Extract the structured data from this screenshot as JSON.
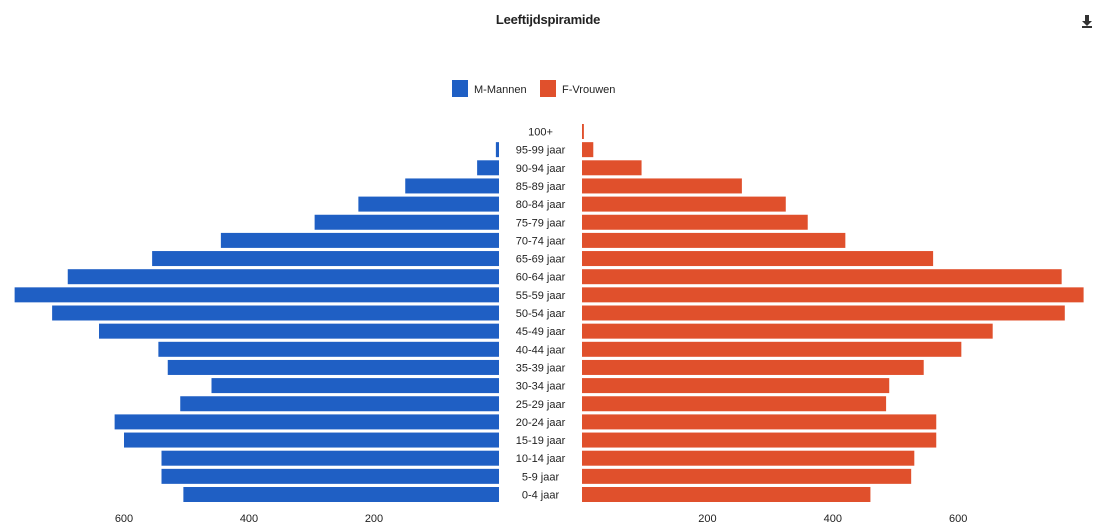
{
  "chart_data": {
    "type": "bar",
    "title": "Leeftijdspiramide",
    "categories": [
      "100+",
      "95-99 jaar",
      "90-94 jaar",
      "85-89 jaar",
      "80-84 jaar",
      "75-79 jaar",
      "70-74 jaar",
      "65-69 jaar",
      "60-64 jaar",
      "55-59 jaar",
      "50-54 jaar",
      "45-49 jaar",
      "40-44 jaar",
      "35-39 jaar",
      "30-34 jaar",
      "25-29 jaar",
      "20-24 jaar",
      "15-19 jaar",
      "10-14 jaar",
      "5-9 jaar",
      "0-4 jaar"
    ],
    "series": [
      {
        "name": "M-Mannen",
        "color": "#1f5fc4",
        "side": "left",
        "values": [
          0,
          5,
          35,
          150,
          225,
          295,
          445,
          555,
          690,
          775,
          715,
          640,
          545,
          530,
          460,
          510,
          615,
          600,
          540,
          540,
          505
        ]
      },
      {
        "name": "F-Vrouwen",
        "color": "#e0502c",
        "side": "right",
        "values": [
          3,
          18,
          95,
          255,
          325,
          360,
          420,
          560,
          765,
          800,
          770,
          655,
          605,
          545,
          490,
          485,
          565,
          565,
          530,
          525,
          460
        ]
      }
    ],
    "xlim": [
      0,
      800
    ],
    "left_ticks": [
      600,
      400,
      200
    ],
    "right_ticks": [
      200,
      400,
      600
    ],
    "legend_position": "top-center",
    "grid": false
  },
  "icons": {
    "corner": "download-icon"
  }
}
